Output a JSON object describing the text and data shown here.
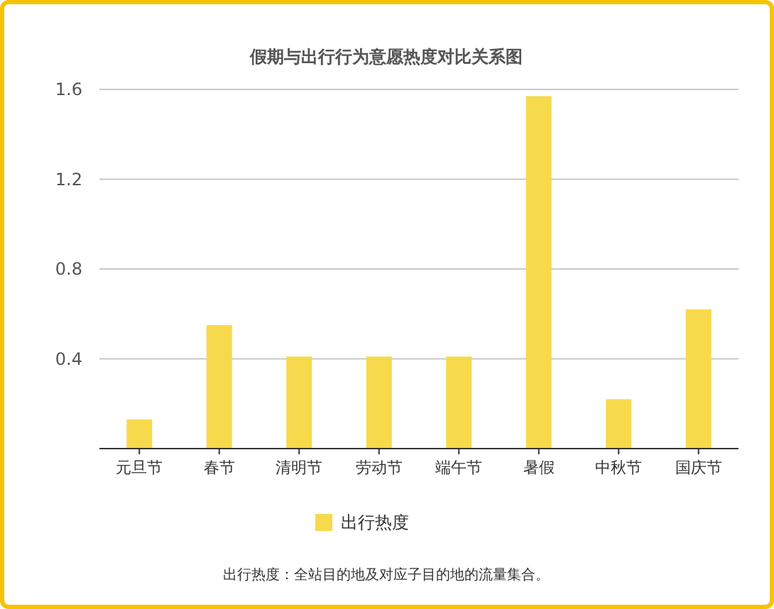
{
  "chart_data": {
    "type": "bar",
    "title": "假期与出行行为意愿热度对比关系图",
    "categories": [
      "元旦节",
      "春节",
      "清明节",
      "劳动节",
      "端午节",
      "暑假",
      "中秋节",
      "国庆节"
    ],
    "series": [
      {
        "name": "出行热度",
        "color": "#f7d94c",
        "values": [
          0.13,
          0.55,
          0.41,
          0.41,
          0.41,
          1.57,
          0.22,
          0.62
        ]
      }
    ],
    "ylim": [
      0,
      1.6
    ],
    "yticks": [
      0.4,
      0.8,
      1.2,
      1.6
    ],
    "grid": "y",
    "legend": "bottom",
    "annotations": [
      "出行热度：全站目的地及对应子目的地的流量集合。"
    ]
  }
}
